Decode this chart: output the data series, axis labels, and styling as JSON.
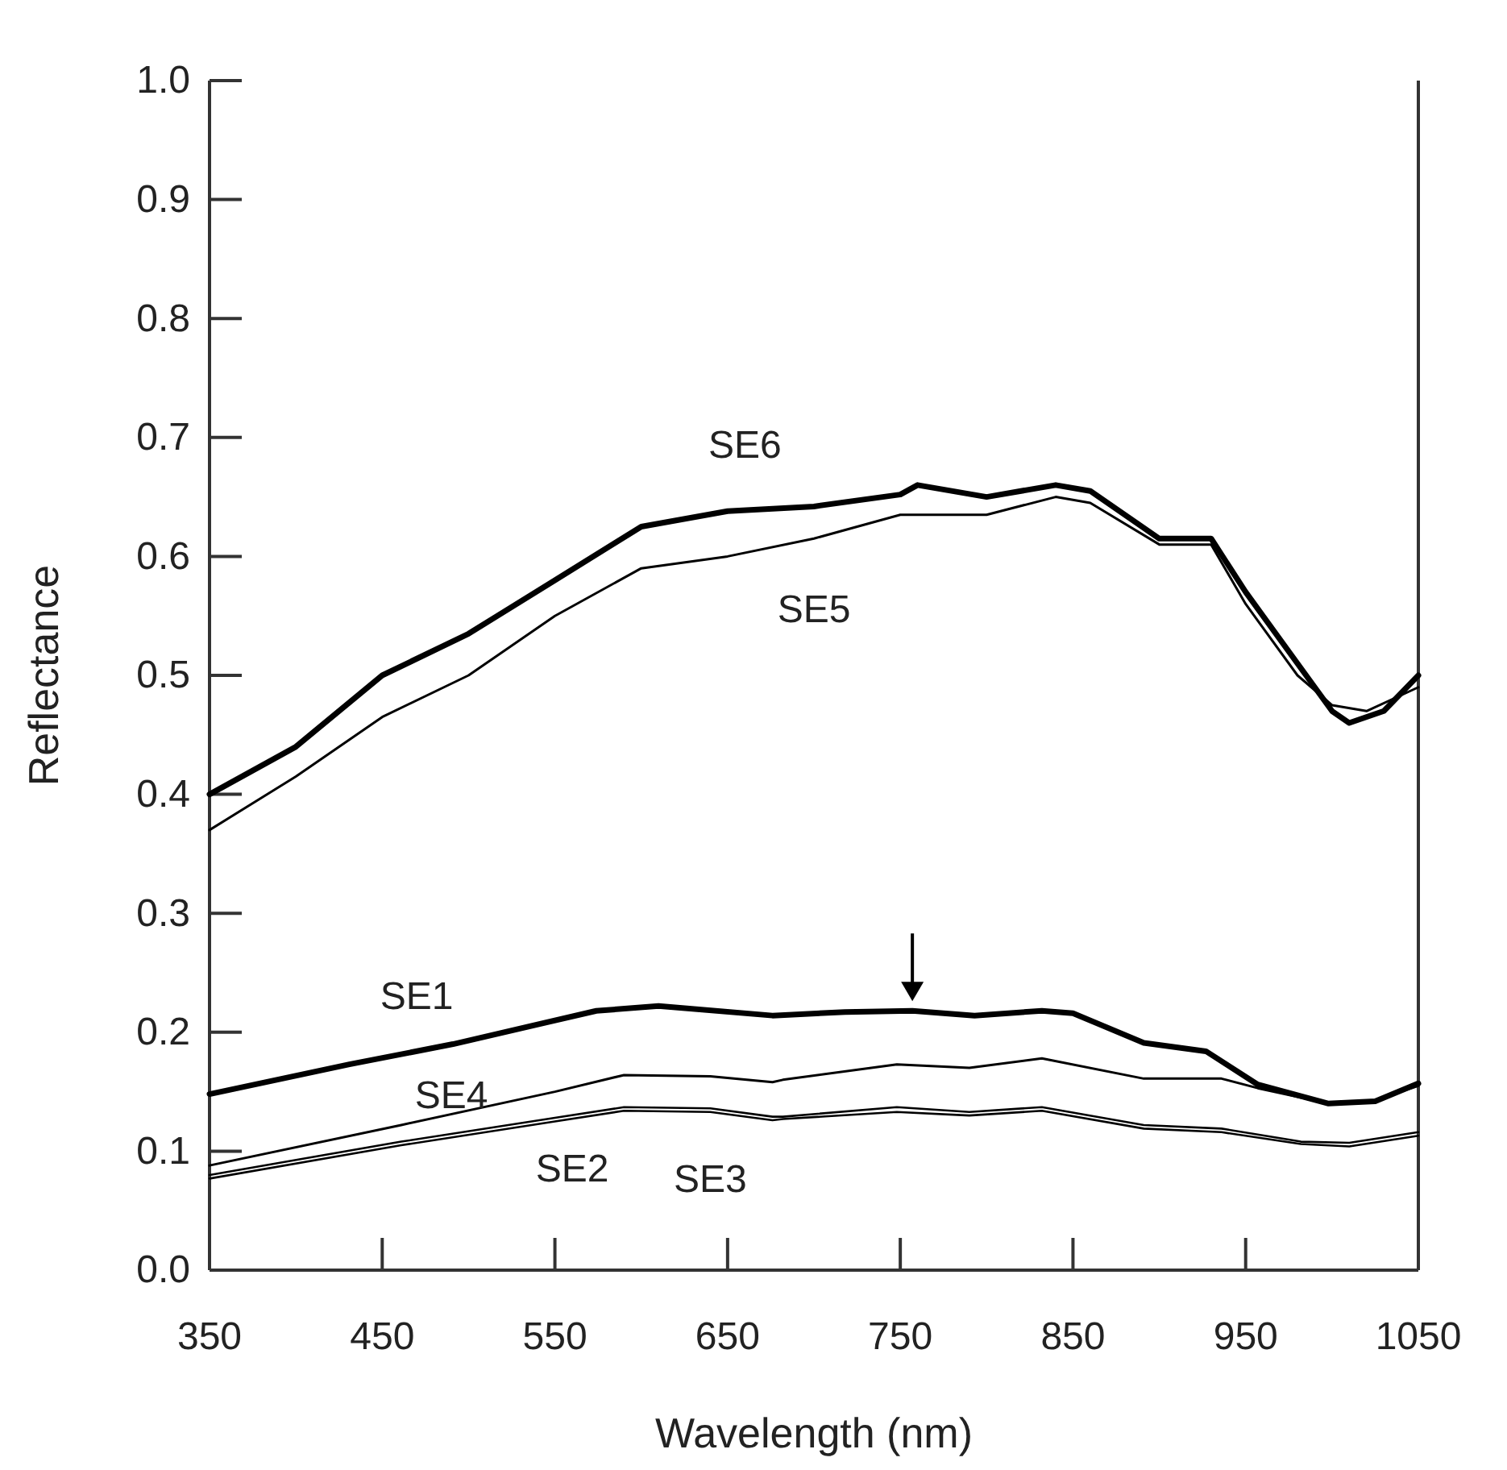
{
  "chart_data": {
    "type": "line",
    "xlabel": "Wavelength (nm)",
    "ylabel": "Reflectance",
    "xlim": [
      350,
      1050
    ],
    "ylim": [
      0,
      1
    ],
    "xticks": [
      350,
      450,
      550,
      650,
      750,
      850,
      950,
      1050
    ],
    "yticks": [
      {
        "value": 0,
        "label": "0.0"
      },
      0.1,
      0.2,
      0.3,
      0.4,
      0.5,
      0.6,
      0.7,
      0.8,
      0.9,
      {
        "value": 1,
        "label": "1.0"
      }
    ],
    "grid": false,
    "marker": "none",
    "line_style": "solid",
    "series": [
      {
        "name": "SE1",
        "color": "#000000",
        "x": [
          350,
          431,
          491,
          574,
          610,
          676,
          718,
          757,
          793,
          832,
          850,
          891,
          927,
          957,
          998,
          1025,
          1050
        ],
        "values": [
          0.148,
          0.173,
          0.19,
          0.218,
          0.222,
          0.214,
          0.217,
          0.218,
          0.214,
          0.218,
          0.216,
          0.191,
          0.184,
          0.156,
          0.14,
          0.142,
          0.157
        ]
      },
      {
        "name": "SE2",
        "color": "#000000",
        "x": [
          350,
          461,
          550,
          590,
          640,
          676,
          682,
          748,
          790,
          832,
          891,
          936,
          982,
          1010,
          1050
        ],
        "values": [
          0.077,
          0.105,
          0.125,
          0.134,
          0.133,
          0.126,
          0.127,
          0.133,
          0.13,
          0.134,
          0.119,
          0.116,
          0.106,
          0.104,
          0.113
        ]
      },
      {
        "name": "SE3",
        "color": "#000000",
        "x": [
          350,
          461,
          550,
          590,
          640,
          676,
          682,
          748,
          790,
          832,
          891,
          936,
          982,
          1010,
          1050
        ],
        "values": [
          0.08,
          0.108,
          0.128,
          0.137,
          0.136,
          0.129,
          0.129,
          0.137,
          0.133,
          0.137,
          0.122,
          0.119,
          0.108,
          0.107,
          0.116
        ]
      },
      {
        "name": "SE4",
        "color": "#000000",
        "x": [
          350,
          461,
          550,
          590,
          640,
          676,
          682,
          748,
          790,
          832,
          891,
          936,
          957,
          998,
          1025,
          1050
        ],
        "values": [
          0.088,
          0.122,
          0.15,
          0.164,
          0.163,
          0.158,
          0.16,
          0.173,
          0.17,
          0.178,
          0.161,
          0.161,
          0.153,
          0.14,
          0.143,
          0.155
        ]
      },
      {
        "name": "SE5",
        "color": "#000000",
        "x": [
          350,
          400,
          450,
          500,
          550,
          600,
          650,
          700,
          750,
          800,
          840,
          860,
          900,
          930,
          950,
          980,
          1000,
          1020,
          1050
        ],
        "values": [
          0.37,
          0.415,
          0.465,
          0.5,
          0.55,
          0.59,
          0.6,
          0.615,
          0.635,
          0.635,
          0.65,
          0.645,
          0.61,
          0.61,
          0.56,
          0.5,
          0.475,
          0.47,
          0.49
        ]
      },
      {
        "name": "SE6",
        "color": "#000000",
        "x": [
          350,
          400,
          450,
          500,
          550,
          600,
          650,
          700,
          750,
          760,
          800,
          840,
          860,
          900,
          930,
          950,
          980,
          1000,
          1010,
          1030,
          1050
        ],
        "values": [
          0.4,
          0.44,
          0.5,
          0.535,
          0.58,
          0.625,
          0.638,
          0.642,
          0.652,
          0.66,
          0.65,
          0.66,
          0.655,
          0.615,
          0.615,
          0.57,
          0.51,
          0.47,
          0.46,
          0.47,
          0.5
        ]
      }
    ]
  }
}
